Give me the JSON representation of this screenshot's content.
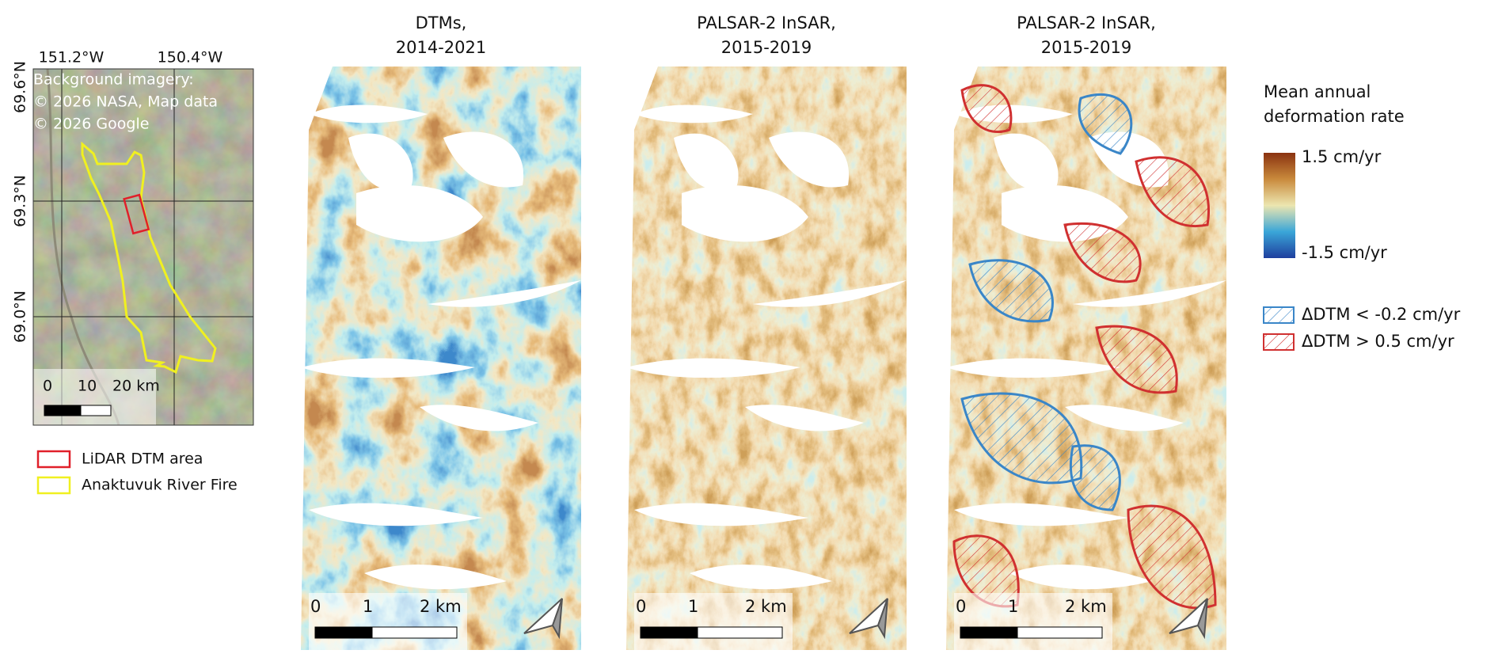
{
  "overview": {
    "lon_labels": [
      "151.2°W",
      "150.4°W"
    ],
    "lat_labels": [
      "69.6°N",
      "69.3°N",
      "69.0°N"
    ],
    "attribution": [
      "Background imagery:",
      "© 2026 NASA, Map data",
      "© 2026 Google"
    ],
    "scalebar": [
      "0",
      "10",
      "20 km"
    ]
  },
  "area_legend": [
    {
      "label": "LiDAR DTM area",
      "color": "#e0202a"
    },
    {
      "label": "Anaktuvuk River Fire",
      "color": "#f0f020"
    }
  ],
  "panels": [
    {
      "title": [
        "DTMs,",
        "2014-2021"
      ],
      "scalebar": [
        "0",
        "1",
        "2 km"
      ]
    },
    {
      "title": [
        "PALSAR-2 InSAR,",
        "2015-2019"
      ],
      "scalebar": [
        "0",
        "1",
        "2 km"
      ]
    },
    {
      "title": [
        "PALSAR-2 InSAR,",
        "2015-2019"
      ],
      "scalebar": [
        "0",
        "1",
        "2 km"
      ]
    }
  ],
  "colorbar": {
    "title": [
      "Mean annual",
      "deformation rate"
    ],
    "max_label": "1.5 cm/yr",
    "min_label": "-1.5 cm/yr"
  },
  "hatch_legend": [
    {
      "label": "ΔDTM < -0.2 cm/yr",
      "color": "#3a86c8"
    },
    {
      "label": "ΔDTM > 0.5 cm/yr",
      "color": "#d03030"
    }
  ]
}
